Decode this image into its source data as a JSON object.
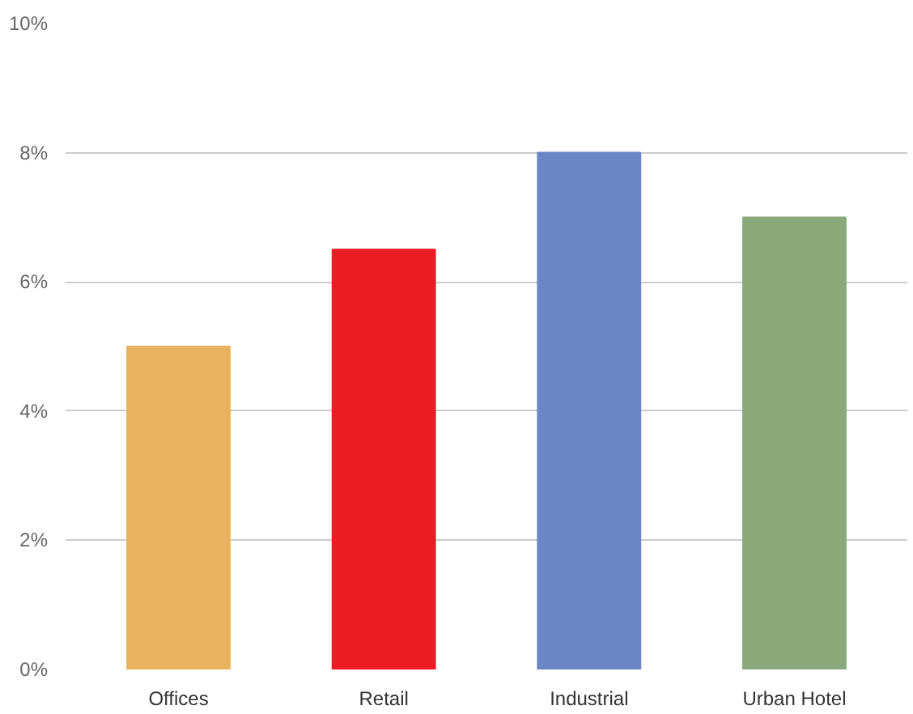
{
  "chart_data": {
    "type": "bar",
    "categories": [
      "Offices",
      "Retail",
      "Industrial",
      "Urban Hotel"
    ],
    "values": [
      5,
      6.5,
      8,
      7
    ],
    "colors": [
      "#e9b25f",
      "#ec1c24",
      "#6a86c4",
      "#8aaa7c"
    ],
    "ylim": [
      0,
      10
    ],
    "yticks": [
      {
        "value": 0,
        "label": "0%"
      },
      {
        "value": 2,
        "label": "2%"
      },
      {
        "value": 4,
        "label": "4%"
      },
      {
        "value": 6,
        "label": "6%"
      },
      {
        "value": 8,
        "label": "8%"
      },
      {
        "value": 10,
        "label": "10%"
      }
    ],
    "grid": "y"
  }
}
